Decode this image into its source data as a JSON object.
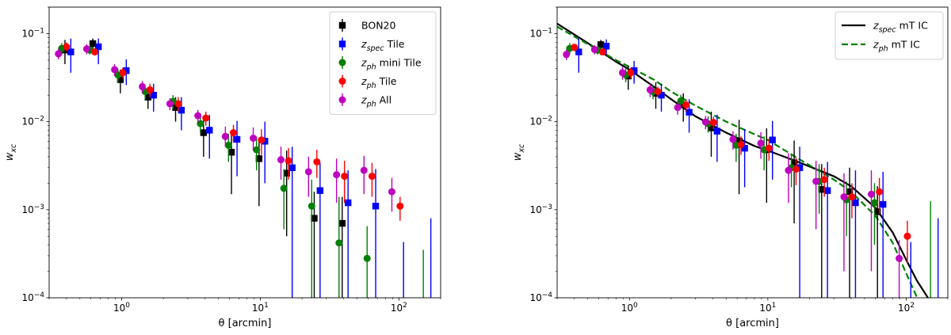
{
  "chart_data": [
    {
      "type": "scatter",
      "title": "",
      "xlabel": "θ [arcmin]",
      "ylabel": "w_xc",
      "xscale": "log",
      "yscale": "log",
      "xlim": [
        0.3,
        200
      ],
      "ylim": [
        0.0001,
        0.2
      ],
      "xticks": [
        {
          "value": 1,
          "base": "10",
          "exp": "0"
        },
        {
          "value": 10,
          "base": "10",
          "exp": "1"
        },
        {
          "value": 100,
          "base": "10",
          "exp": "2"
        }
      ],
      "yticks": [
        {
          "value": 0.0001,
          "base": "10",
          "exp": "−4"
        },
        {
          "value": 0.001,
          "base": "10",
          "exp": "−3"
        },
        {
          "value": 0.01,
          "base": "10",
          "exp": "−2"
        },
        {
          "value": 0.1,
          "base": "10",
          "exp": "−1"
        }
      ],
      "legend_position": "top-right",
      "series": [
        {
          "name": "BON20",
          "legend": {
            "main": "BON20",
            "sub": "",
            "rest": ""
          },
          "color": "#000000",
          "marker": "square",
          "x": [
            0.39,
            0.62,
            0.98,
            1.55,
            2.45,
            3.9,
            6.2,
            9.8,
            15.5,
            24.5,
            39,
            62
          ],
          "y": [
            0.065,
            0.077,
            0.03,
            0.019,
            0.0145,
            0.0075,
            0.0045,
            0.0038,
            0.0026,
            0.0008,
            0.0007,
            null
          ],
          "lo": [
            0.045,
            0.058,
            0.021,
            0.014,
            0.01,
            0.004,
            0.0015,
            0.0011,
            0.0005,
            5e-05,
            5e-05,
            null
          ],
          "hi": [
            0.085,
            0.088,
            0.039,
            0.024,
            0.019,
            0.011,
            0.0075,
            0.0064,
            0.0047,
            0.0016,
            0.0014,
            null
          ]
        },
        {
          "name": "z_spec Tile",
          "legend": {
            "main": "z",
            "sub": "spec",
            "rest": " Tile"
          },
          "color": "#0000ff",
          "marker": "square",
          "x": [
            0.43,
            0.68,
            1.08,
            1.7,
            2.7,
            4.3,
            6.8,
            10.8,
            17,
            27,
            43,
            68
          ],
          "y": [
            0.062,
            0.071,
            0.038,
            0.02,
            0.0135,
            0.008,
            0.0063,
            0.006,
            0.003,
            0.00165,
            0.0012,
            0.0011
          ],
          "lo": [
            0.036,
            0.045,
            0.026,
            0.013,
            0.008,
            0.0038,
            0.0024,
            0.002,
            8e-05,
            5e-05,
            5e-05,
            5e-05
          ],
          "hi": [
            0.088,
            0.088,
            0.051,
            0.027,
            0.019,
            0.012,
            0.0102,
            0.01,
            0.0052,
            0.0034,
            0.0028,
            0.0029
          ]
        },
        {
          "name": "z_ph mini Tile",
          "legend": {
            "main": "z",
            "sub": "ph",
            "rest": " mini Tile"
          },
          "color": "#008000",
          "marker": "circle",
          "x": [
            0.37,
            0.59,
            0.94,
            1.48,
            2.35,
            3.7,
            5.9,
            9.4,
            14.8,
            23.5,
            37,
            59
          ],
          "y": [
            0.068,
            0.065,
            0.034,
            0.022,
            0.017,
            0.0095,
            0.0054,
            0.0048,
            0.00175,
            0.0011,
            0.00042,
            0.00028
          ],
          "lo": [
            0.058,
            0.058,
            0.028,
            0.018,
            0.014,
            0.0075,
            0.0035,
            0.0028,
            0.0006,
            5e-05,
            5e-05,
            5e-05
          ],
          "hi": [
            0.078,
            0.072,
            0.04,
            0.026,
            0.02,
            0.0115,
            0.0073,
            0.0068,
            0.0029,
            0.0022,
            0.0014,
            0.00065
          ]
        },
        {
          "name": "z_ph Tile",
          "legend": {
            "main": "z",
            "sub": "ph",
            "rest": " Tile"
          },
          "color": "#ff0000",
          "marker": "circle",
          "x": [
            0.4,
            0.64,
            1.02,
            1.6,
            2.56,
            4.05,
            6.4,
            10.2,
            16,
            25.6,
            40.5,
            64,
            102
          ],
          "y": [
            0.071,
            0.062,
            0.036,
            0.023,
            0.016,
            0.011,
            0.0075,
            0.0062,
            0.0036,
            0.0035,
            0.0024,
            0.0024,
            0.0011
          ],
          "lo": [
            0.063,
            0.058,
            0.031,
            0.019,
            0.013,
            0.009,
            0.0058,
            0.0042,
            0.0022,
            0.0023,
            0.0012,
            0.0014,
            0.00075
          ],
          "hi": [
            0.079,
            0.066,
            0.041,
            0.027,
            0.019,
            0.013,
            0.0092,
            0.0082,
            0.005,
            0.0048,
            0.0036,
            0.0034,
            0.0014
          ]
        },
        {
          "name": "z_ph All",
          "legend": {
            "main": "z",
            "sub": "ph",
            "rest": " All"
          },
          "color": "#bf00bf",
          "marker": "circle",
          "x": [
            0.35,
            0.56,
            0.89,
            1.41,
            2.23,
            3.55,
            5.6,
            8.9,
            14.1,
            22.3,
            35.5,
            56,
            89
          ],
          "y": [
            0.059,
            0.067,
            0.039,
            0.025,
            0.016,
            0.0117,
            0.0068,
            0.0065,
            0.0037,
            0.0027,
            0.0025,
            0.0028,
            0.0016
          ],
          "lo": [
            0.051,
            0.058,
            0.033,
            0.021,
            0.0135,
            0.0098,
            0.0052,
            0.0047,
            0.0022,
            0.0014,
            0.0012,
            0.0015,
            0.00095
          ],
          "hi": [
            0.067,
            0.076,
            0.045,
            0.029,
            0.0185,
            0.0136,
            0.0088,
            0.0086,
            0.0052,
            0.004,
            0.0038,
            0.0041,
            0.0023
          ]
        }
      ],
      "extra_errorbars": [
        {
          "color": "#0000ff",
          "x": 108,
          "lo": 0.0001,
          "hi": 0.00043
        },
        {
          "color": "#0000ff",
          "x": 170,
          "lo": 0.0001,
          "hi": 0.0008
        },
        {
          "color": "#008000",
          "x": 150,
          "lo": 0.0001,
          "hi": 0.00035
        }
      ]
    },
    {
      "type": "scatter",
      "title": "",
      "xlabel": "θ [arcmin]",
      "ylabel": "w_xc",
      "xscale": "log",
      "yscale": "log",
      "xlim": [
        0.3,
        200
      ],
      "ylim": [
        0.0001,
        0.2
      ],
      "xticks": [
        {
          "value": 1,
          "base": "10",
          "exp": "0"
        },
        {
          "value": 10,
          "base": "10",
          "exp": "1"
        },
        {
          "value": 100,
          "base": "10",
          "exp": "2"
        }
      ],
      "yticks": [
        {
          "value": 0.0001,
          "base": "10",
          "exp": "−4"
        },
        {
          "value": 0.001,
          "base": "10",
          "exp": "−3"
        },
        {
          "value": 0.01,
          "base": "10",
          "exp": "−2"
        },
        {
          "value": 0.1,
          "base": "10",
          "exp": "−1"
        }
      ],
      "legend_position": "top-right",
      "lines": [
        {
          "name": "z_spec mT IC",
          "legend": {
            "main": "z",
            "sub": "spec",
            "rest": " mT IC"
          },
          "color": "#000000",
          "dash": "solid",
          "x": [
            0.3,
            0.5,
            0.8,
            1,
            1.5,
            2,
            3,
            5,
            8,
            10,
            15,
            20,
            30,
            40,
            60,
            80,
            100,
            120,
            150
          ],
          "y": [
            0.13,
            0.078,
            0.048,
            0.039,
            0.025,
            0.018,
            0.0115,
            0.0075,
            0.0053,
            0.0047,
            0.0037,
            0.0031,
            0.0024,
            0.00185,
            0.00105,
            0.00055,
            0.00027,
            0.000155,
            9e-05
          ]
        },
        {
          "name": "z_ph mT IC",
          "legend": {
            "main": "z",
            "sub": "ph",
            "rest": " mT IC"
          },
          "color": "#008000",
          "dash": "dashed",
          "x": [
            0.3,
            0.5,
            0.8,
            1,
            1.5,
            2,
            3,
            5,
            8,
            10,
            15,
            20,
            30,
            40,
            60,
            80,
            100,
            120
          ],
          "y": [
            0.12,
            0.076,
            0.05,
            0.042,
            0.03,
            0.022,
            0.0152,
            0.01,
            0.0072,
            0.0062,
            0.0042,
            0.0032,
            0.0022,
            0.0016,
            0.00085,
            0.00042,
            0.00019,
            0.0001
          ]
        }
      ],
      "series": [
        {
          "name": "BON20",
          "color": "#000000",
          "marker": "square",
          "x": [
            0.62,
            0.98,
            1.55,
            2.45,
            3.9,
            6.2,
            9.8,
            15.5,
            24.5,
            39,
            62
          ],
          "y": [
            0.075,
            0.033,
            0.021,
            0.0155,
            0.0085,
            0.006,
            0.0048,
            0.0034,
            0.0017,
            0.0016,
            0.00095
          ],
          "lo": [
            0.065,
            0.023,
            0.014,
            0.01,
            0.004,
            0.0015,
            0.0012,
            0.0007,
            8e-05,
            8e-05,
            8e-05
          ],
          "hi": [
            0.085,
            0.043,
            0.028,
            0.021,
            0.013,
            0.0105,
            0.0084,
            0.0061,
            0.0033,
            0.003,
            0.00185
          ]
        },
        {
          "name": "z_spec Tile",
          "color": "#0000ff",
          "marker": "square",
          "x": [
            0.43,
            0.68,
            1.08,
            1.7,
            2.7,
            4.3,
            6.8,
            10.8,
            17,
            27,
            43,
            68
          ],
          "y": [
            0.062,
            0.072,
            0.038,
            0.02,
            0.0128,
            0.0078,
            0.005,
            0.0062,
            0.003,
            0.00165,
            0.0012,
            0.00115
          ],
          "lo": [
            0.036,
            0.058,
            0.027,
            0.013,
            0.0075,
            0.0035,
            0.0018,
            0.0022,
            8e-05,
            8e-05,
            8e-05,
            8e-05
          ],
          "hi": [
            0.088,
            0.086,
            0.049,
            0.027,
            0.018,
            0.012,
            0.0082,
            0.0102,
            0.0052,
            0.0035,
            0.0028,
            0.0027
          ]
        },
        {
          "name": "z_ph mini Tile",
          "color": "#008000",
          "marker": "circle",
          "x": [
            0.37,
            0.59,
            0.94,
            1.48,
            2.35,
            3.7,
            5.9,
            9.4,
            14.8,
            23.5,
            37,
            59
          ],
          "y": [
            0.068,
            0.065,
            0.034,
            0.022,
            0.0172,
            0.0095,
            0.0054,
            0.0048,
            0.003,
            0.0021,
            0.0013,
            0.0012
          ],
          "lo": [
            0.058,
            0.058,
            0.028,
            0.018,
            0.0142,
            0.0075,
            0.0035,
            0.0028,
            0.0018,
            0.0009,
            0.0005,
            0.0004
          ],
          "hi": [
            0.078,
            0.072,
            0.04,
            0.026,
            0.0202,
            0.0115,
            0.0073,
            0.0068,
            0.0042,
            0.0033,
            0.0021,
            0.002
          ]
        },
        {
          "name": "z_ph Tile",
          "color": "#ff0000",
          "marker": "circle",
          "x": [
            0.4,
            0.64,
            1.02,
            1.6,
            2.56,
            4.05,
            6.4,
            10.2,
            16,
            25.6,
            40.5,
            64,
            102
          ],
          "y": [
            0.07,
            0.062,
            0.036,
            0.022,
            0.0155,
            0.0098,
            0.0055,
            0.005,
            0.0029,
            0.0022,
            0.0014,
            0.0016,
            0.0005
          ],
          "lo": [
            0.063,
            0.058,
            0.031,
            0.019,
            0.013,
            0.0082,
            0.0042,
            0.0036,
            0.0019,
            0.0014,
            0.0008,
            0.0009,
            0.00025
          ],
          "hi": [
            0.077,
            0.066,
            0.041,
            0.025,
            0.018,
            0.0114,
            0.0068,
            0.0064,
            0.0039,
            0.003,
            0.002,
            0.0023,
            0.00075
          ]
        },
        {
          "name": "z_ph All",
          "color": "#bf00bf",
          "marker": "circle",
          "x": [
            0.35,
            0.56,
            0.89,
            1.41,
            2.23,
            3.55,
            5.6,
            8.9,
            14.1,
            22.3,
            35.5,
            56,
            89
          ],
          "y": [
            0.058,
            0.066,
            0.036,
            0.023,
            0.0145,
            0.0099,
            0.0063,
            0.0057,
            0.0028,
            0.0021,
            0.0014,
            0.0015,
            0.00028
          ],
          "lo": [
            0.05,
            0.058,
            0.03,
            0.019,
            0.012,
            0.0082,
            0.0048,
            0.0038,
            0.0012,
            0.0006,
            0.0002,
            0.0002,
            0.0001
          ],
          "hi": [
            0.066,
            0.074,
            0.042,
            0.027,
            0.017,
            0.0116,
            0.0078,
            0.0076,
            0.0044,
            0.0036,
            0.0026,
            0.0028,
            0.00045
          ]
        }
      ],
      "extra_errorbars": [
        {
          "color": "#0000ff",
          "x": 108,
          "lo": 0.0001,
          "hi": 0.00043
        },
        {
          "color": "#0000ff",
          "x": 170,
          "lo": 0.0001,
          "hi": 0.0008
        },
        {
          "color": "#008000",
          "x": 150,
          "lo": 0.0001,
          "hi": 0.00125
        }
      ]
    }
  ]
}
